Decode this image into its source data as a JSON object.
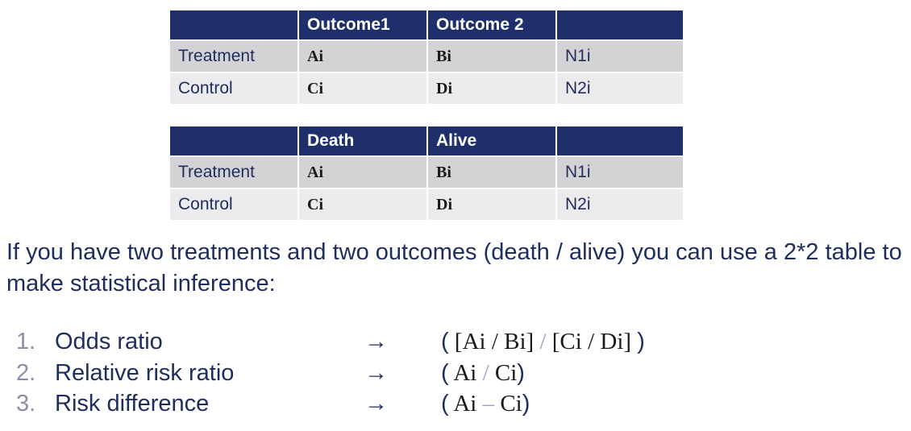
{
  "table1": {
    "headers": [
      "",
      "Outcome1",
      "Outcome 2",
      ""
    ],
    "rows": [
      [
        "Treatment",
        "Ai",
        "Bi",
        "N1i"
      ],
      [
        "Control",
        "Ci",
        "Di",
        "N2i"
      ]
    ]
  },
  "table2": {
    "headers": [
      "",
      "Death",
      "Alive",
      ""
    ],
    "rows": [
      [
        "Treatment",
        "Ai",
        "Bi",
        "N1i"
      ],
      [
        "Control",
        "Ci",
        "Di",
        "N2i"
      ]
    ]
  },
  "paragraph": "If you have two treatments and two outcomes (death / alive) you can use a 2*2 table to make statistical inference:",
  "list": [
    {
      "num": "1.",
      "label": "Odds ratio",
      "arrow": "→",
      "formula_open": "(",
      "formula_a": "[Ai / Bi]",
      "formula_op": "/",
      "formula_b": "[Ci / Di]",
      "formula_close": ")"
    },
    {
      "num": "2.",
      "label": "Relative risk ratio",
      "arrow": "→",
      "formula_open": "(",
      "formula_a": "Ai",
      "formula_op": "/",
      "formula_b": "Ci",
      "formula_close": ")"
    },
    {
      "num": "3.",
      "label": "Risk difference",
      "arrow": "→",
      "formula_open": "(",
      "formula_a": "Ai",
      "formula_op": "–",
      "formula_b": "Ci",
      "formula_close": ")"
    }
  ],
  "colors": {
    "header_bg": "#1f2f6b",
    "row_dark": "#d3d3d6",
    "row_light": "#ebebed",
    "text": "#1f2d5c"
  }
}
